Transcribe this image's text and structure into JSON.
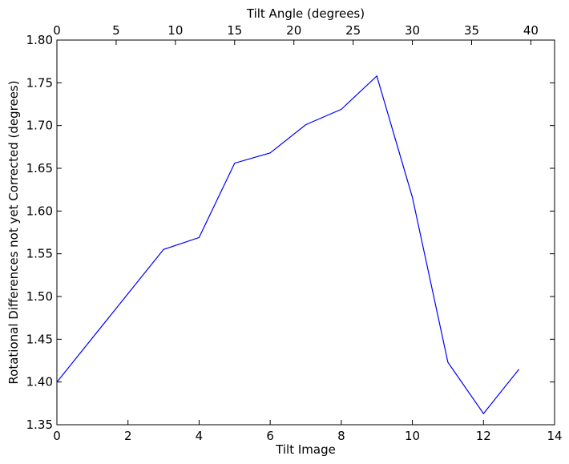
{
  "chart_data": {
    "type": "line",
    "title": "",
    "xlabel": "Tilt Image",
    "ylabel": "Rotational Differences not yet Corrected (degrees)",
    "x2label": "Tilt Angle (degrees)",
    "xlim": [
      0,
      14
    ],
    "ylim": [
      1.35,
      1.8
    ],
    "x2lim": [
      0,
      42
    ],
    "x_ticks": [
      0,
      2,
      4,
      6,
      8,
      10,
      12,
      14
    ],
    "x_tick_labels": [
      "0",
      "2",
      "4",
      "6",
      "8",
      "10",
      "12",
      "14"
    ],
    "y_ticks": [
      1.35,
      1.4,
      1.45,
      1.5,
      1.55,
      1.6,
      1.65,
      1.7,
      1.75,
      1.8
    ],
    "y_tick_labels": [
      "1.35",
      "1.40",
      "1.45",
      "1.50",
      "1.55",
      "1.60",
      "1.65",
      "1.70",
      "1.75",
      "1.80"
    ],
    "x2_ticks": [
      0,
      5,
      10,
      15,
      20,
      25,
      30,
      35,
      40
    ],
    "x2_tick_labels": [
      "0",
      "5",
      "10",
      "15",
      "20",
      "25",
      "30",
      "35",
      "40"
    ],
    "grid": false,
    "series": [
      {
        "color": "#0000ff",
        "x": [
          0,
          3,
          4,
          5,
          6,
          7,
          8,
          9,
          10,
          11,
          12,
          13
        ],
        "y": [
          1.4,
          1.555,
          1.569,
          1.656,
          1.668,
          1.701,
          1.719,
          1.758,
          1.616,
          1.423,
          1.363,
          1.415
        ]
      }
    ]
  }
}
